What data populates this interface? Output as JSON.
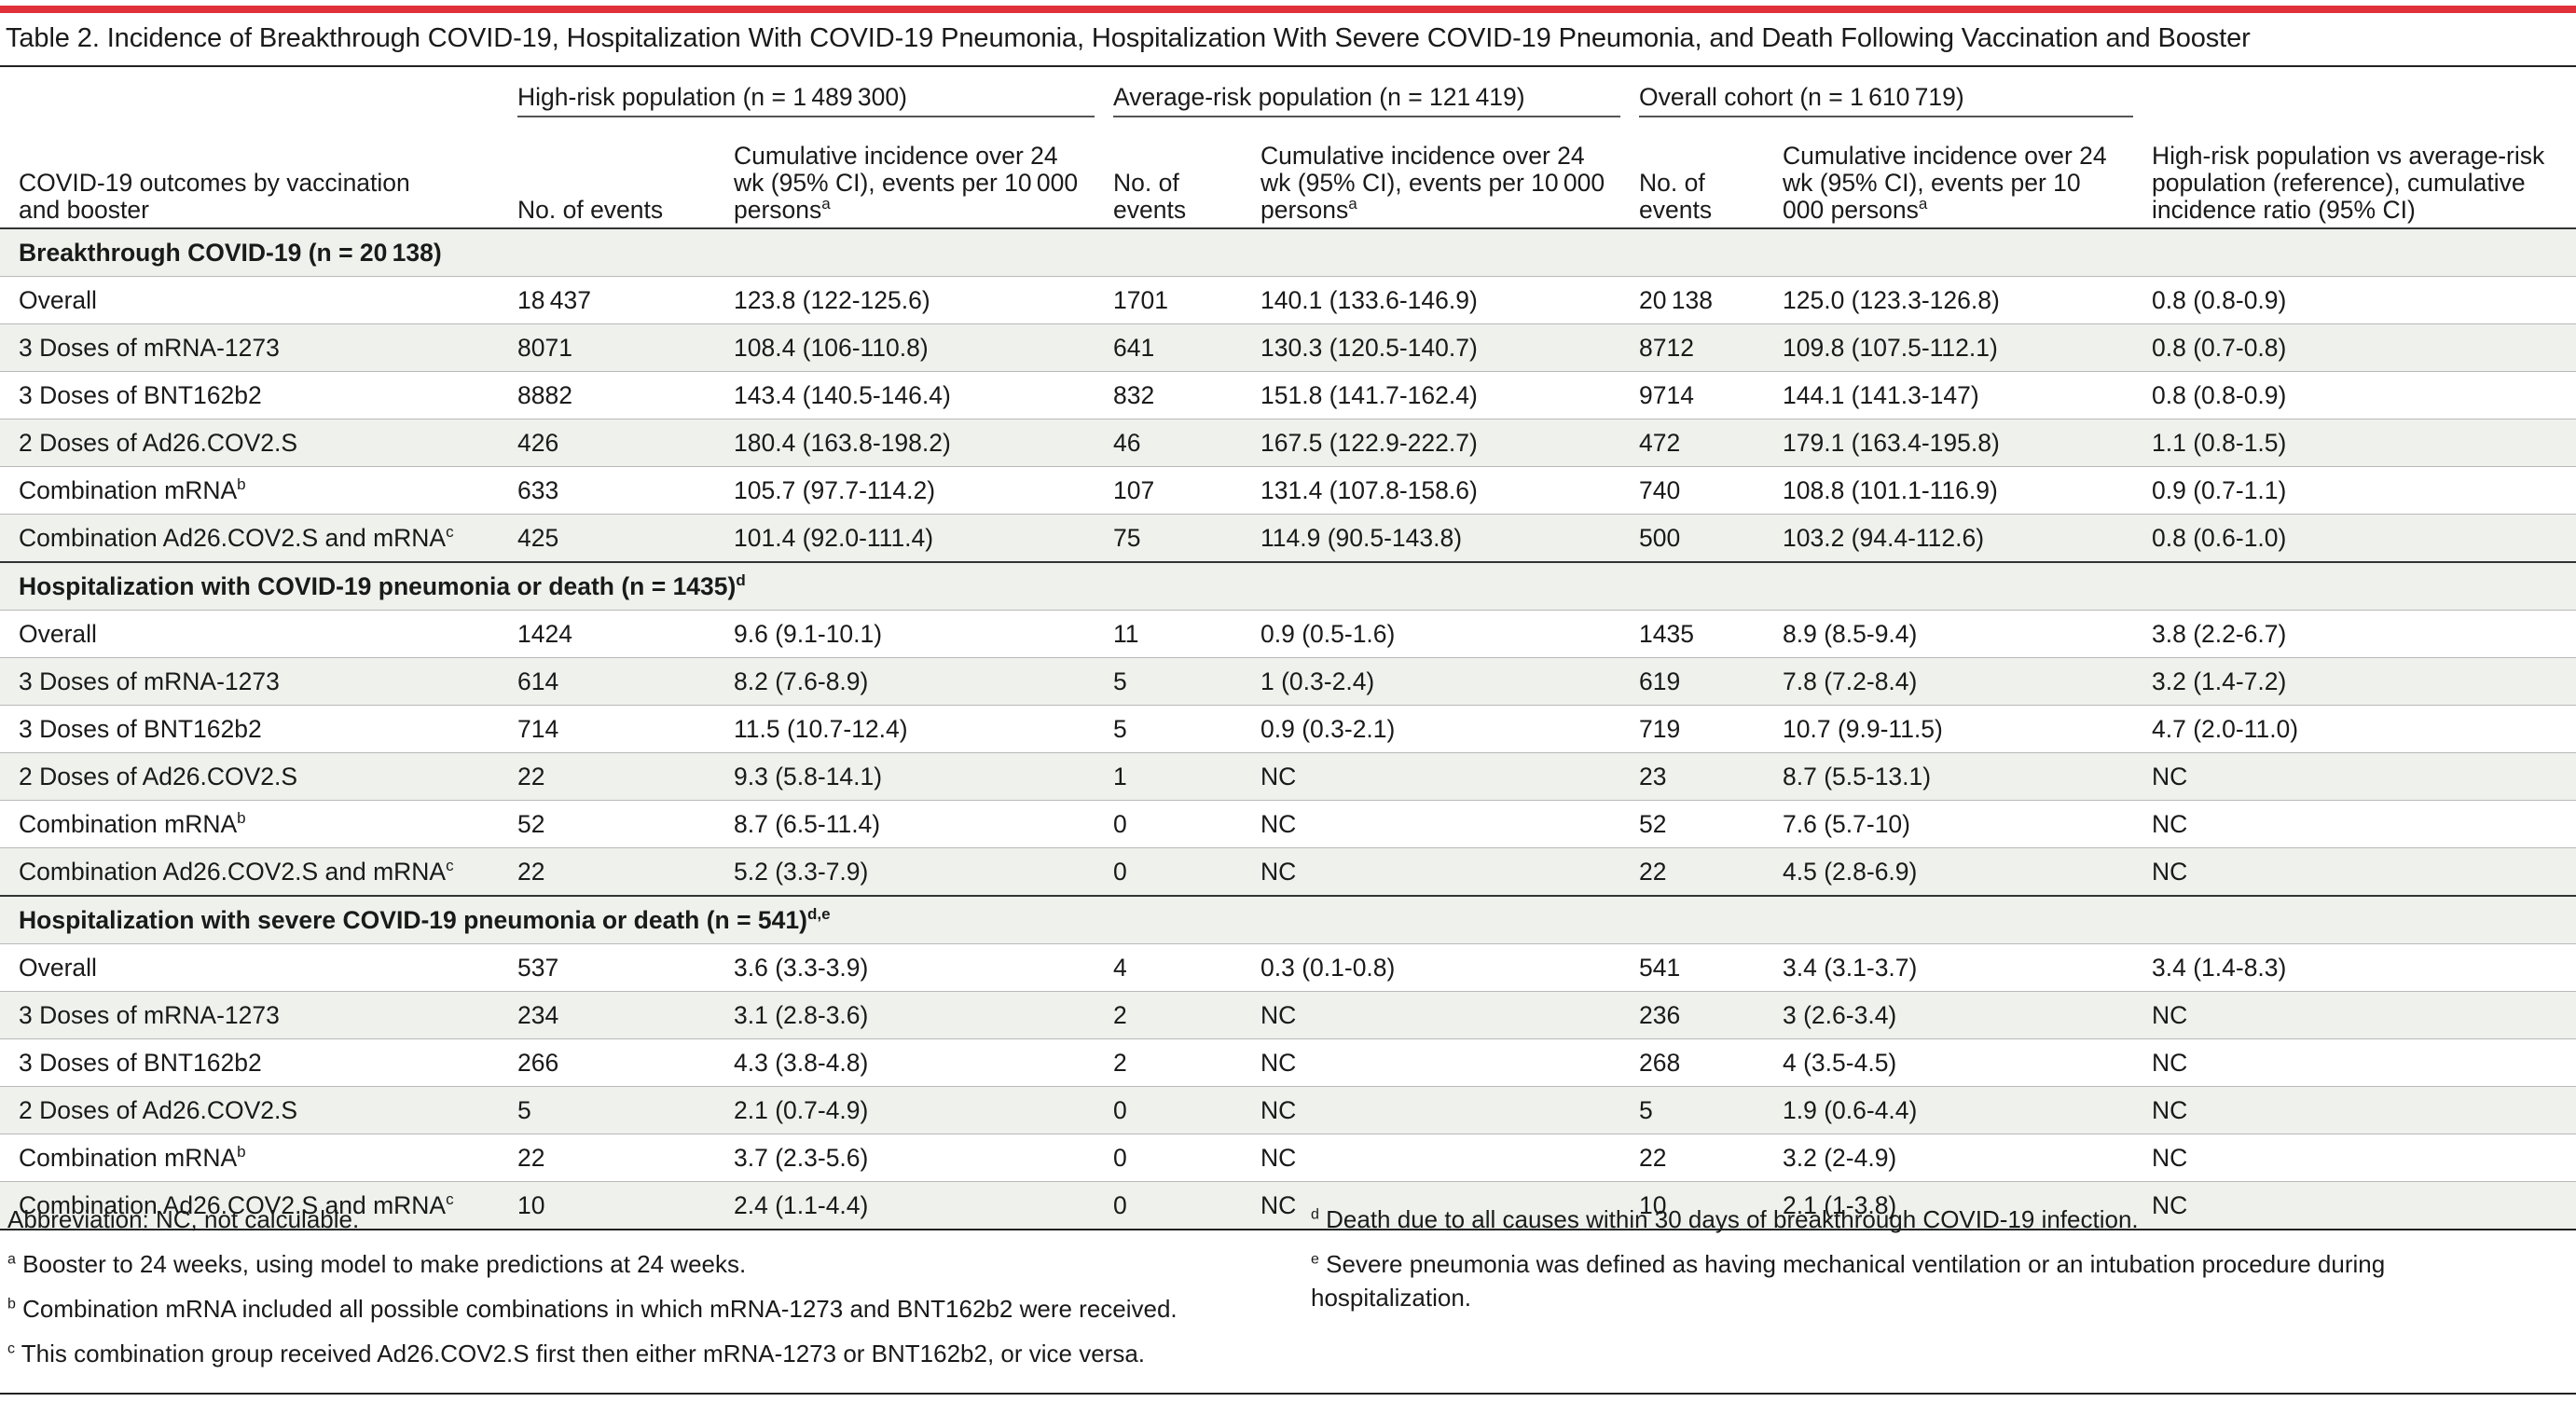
{
  "title": "Table 2. Incidence of Breakthrough COVID-19, Hospitalization With COVID-19 Pneumonia, Hospitalization With Severe COVID-19 Pneumonia, and Death Following Vaccination and Booster",
  "header": {
    "row_label": "COVID-19 outcomes by vaccination and booster",
    "groups": [
      {
        "label": "High-risk population (n = 1 489 300)",
        "events": "No. of events",
        "incidence": "Cumulative incidence over 24 wk (95% CI), events per 10 000 persons",
        "sup": "a"
      },
      {
        "label": "Average-risk population (n = 121 419)",
        "events": "No. of events",
        "incidence": "Cumulative incidence over 24 wk (95% CI), events per 10 000 persons",
        "sup": "a"
      },
      {
        "label": "Overall cohort (n = 1 610 719)",
        "events": "No. of events",
        "incidence": "Cumulative incidence over 24 wk (95% CI), events per 10 000 persons",
        "sup": "a"
      }
    ],
    "ratio": "High-risk population vs average-risk population (reference), cumulative incidence ratio (95% CI)"
  },
  "sections": [
    {
      "title": "Breakthrough COVID-19 (n = 20 138)",
      "title_sup": "",
      "rows": [
        {
          "label": "Overall",
          "sup": "",
          "hr_n": "18 437",
          "hr_ci": "123.8 (122-125.6)",
          "ar_n": "1701",
          "ar_ci": "140.1 (133.6-146.9)",
          "oc_n": "20 138",
          "oc_ci": "125.0 (123.3-126.8)",
          "ratio": "0.8 (0.8-0.9)"
        },
        {
          "label": "3 Doses of mRNA-1273",
          "sup": "",
          "hr_n": "8071",
          "hr_ci": "108.4 (106-110.8)",
          "ar_n": "641",
          "ar_ci": "130.3 (120.5-140.7)",
          "oc_n": "8712",
          "oc_ci": "109.8 (107.5-112.1)",
          "ratio": "0.8 (0.7-0.8)"
        },
        {
          "label": "3 Doses of BNT162b2",
          "sup": "",
          "hr_n": "8882",
          "hr_ci": "143.4 (140.5-146.4)",
          "ar_n": "832",
          "ar_ci": "151.8 (141.7-162.4)",
          "oc_n": "9714",
          "oc_ci": "144.1 (141.3-147)",
          "ratio": "0.8 (0.8-0.9)"
        },
        {
          "label": "2 Doses of Ad26.COV2.S",
          "sup": "",
          "hr_n": "426",
          "hr_ci": "180.4 (163.8-198.2)",
          "ar_n": "46",
          "ar_ci": "167.5 (122.9-222.7)",
          "oc_n": "472",
          "oc_ci": "179.1 (163.4-195.8)",
          "ratio": "1.1 (0.8-1.5)"
        },
        {
          "label": "Combination mRNA",
          "sup": "b",
          "hr_n": "633",
          "hr_ci": "105.7 (97.7-114.2)",
          "ar_n": "107",
          "ar_ci": "131.4 (107.8-158.6)",
          "oc_n": "740",
          "oc_ci": "108.8 (101.1-116.9)",
          "ratio": "0.9 (0.7-1.1)"
        },
        {
          "label": "Combination Ad26.COV2.S and mRNA",
          "sup": "c",
          "hr_n": "425",
          "hr_ci": "101.4 (92.0-111.4)",
          "ar_n": "75",
          "ar_ci": "114.9 (90.5-143.8)",
          "oc_n": "500",
          "oc_ci": "103.2 (94.4-112.6)",
          "ratio": "0.8 (0.6-1.0)"
        }
      ]
    },
    {
      "title": "Hospitalization with COVID-19 pneumonia or death (n = 1435)",
      "title_sup": "d",
      "rows": [
        {
          "label": "Overall",
          "sup": "",
          "hr_n": "1424",
          "hr_ci": "9.6 (9.1-10.1)",
          "ar_n": "11",
          "ar_ci": "0.9 (0.5-1.6)",
          "oc_n": "1435",
          "oc_ci": "8.9 (8.5-9.4)",
          "ratio": "3.8 (2.2-6.7)"
        },
        {
          "label": "3 Doses of mRNA-1273",
          "sup": "",
          "hr_n": "614",
          "hr_ci": "8.2 (7.6-8.9)",
          "ar_n": "5",
          "ar_ci": "1 (0.3-2.4)",
          "oc_n": "619",
          "oc_ci": "7.8 (7.2-8.4)",
          "ratio": "3.2 (1.4-7.2)"
        },
        {
          "label": "3 Doses of BNT162b2",
          "sup": "",
          "hr_n": "714",
          "hr_ci": "11.5 (10.7-12.4)",
          "ar_n": "5",
          "ar_ci": "0.9 (0.3-2.1)",
          "oc_n": "719",
          "oc_ci": "10.7 (9.9-11.5)",
          "ratio": "4.7 (2.0-11.0)"
        },
        {
          "label": "2 Doses of Ad26.COV2.S",
          "sup": "",
          "hr_n": "22",
          "hr_ci": "9.3 (5.8-14.1)",
          "ar_n": "1",
          "ar_ci": "NC",
          "oc_n": "23",
          "oc_ci": "8.7 (5.5-13.1)",
          "ratio": "NC"
        },
        {
          "label": "Combination mRNA",
          "sup": "b",
          "hr_n": "52",
          "hr_ci": "8.7 (6.5-11.4)",
          "ar_n": "0",
          "ar_ci": "NC",
          "oc_n": "52",
          "oc_ci": "7.6 (5.7-10)",
          "ratio": "NC"
        },
        {
          "label": "Combination Ad26.COV2.S and mRNA",
          "sup": "c",
          "hr_n": "22",
          "hr_ci": "5.2 (3.3-7.9)",
          "ar_n": "0",
          "ar_ci": "NC",
          "oc_n": "22",
          "oc_ci": "4.5 (2.8-6.9)",
          "ratio": "NC"
        }
      ]
    },
    {
      "title": "Hospitalization with severe COVID-19 pneumonia or death (n = 541)",
      "title_sup": "d,e",
      "rows": [
        {
          "label": "Overall",
          "sup": "",
          "hr_n": "537",
          "hr_ci": "3.6 (3.3-3.9)",
          "ar_n": "4",
          "ar_ci": "0.3 (0.1-0.8)",
          "oc_n": "541",
          "oc_ci": "3.4 (3.1-3.7)",
          "ratio": "3.4 (1.4-8.3)"
        },
        {
          "label": "3 Doses of mRNA-1273",
          "sup": "",
          "hr_n": "234",
          "hr_ci": "3.1 (2.8-3.6)",
          "ar_n": "2",
          "ar_ci": "NC",
          "oc_n": "236",
          "oc_ci": "3 (2.6-3.4)",
          "ratio": "NC"
        },
        {
          "label": "3 Doses of BNT162b2",
          "sup": "",
          "hr_n": "266",
          "hr_ci": "4.3 (3.8-4.8)",
          "ar_n": "2",
          "ar_ci": "NC",
          "oc_n": "268",
          "oc_ci": "4 (3.5-4.5)",
          "ratio": "NC"
        },
        {
          "label": "2 Doses of Ad26.COV2.S",
          "sup": "",
          "hr_n": "5",
          "hr_ci": "2.1 (0.7-4.9)",
          "ar_n": "0",
          "ar_ci": "NC",
          "oc_n": "5",
          "oc_ci": "1.9 (0.6-4.4)",
          "ratio": "NC"
        },
        {
          "label": "Combination mRNA",
          "sup": "b",
          "hr_n": "22",
          "hr_ci": "3.7 (2.3-5.6)",
          "ar_n": "0",
          "ar_ci": "NC",
          "oc_n": "22",
          "oc_ci": "3.2 (2-4.9)",
          "ratio": "NC"
        },
        {
          "label": "Combination Ad26.COV2.S and mRNA",
          "sup": "c",
          "hr_n": "10",
          "hr_ci": "2.4 (1.1-4.4)",
          "ar_n": "0",
          "ar_ci": "NC",
          "oc_n": "10",
          "oc_ci": "2.1 (1-3.8)",
          "ratio": "NC"
        }
      ]
    }
  ],
  "footnotes": {
    "abbreviation": "Abbreviation: NC, not calculable.",
    "a": {
      "mark": "a",
      "text": "Booster to 24 weeks, using model to make predictions at 24 weeks."
    },
    "b": {
      "mark": "b",
      "text": "Combination mRNA included all possible combinations in which mRNA-1273 and BNT162b2 were received."
    },
    "c": {
      "mark": "c",
      "text": "This combination group received Ad26.COV2.S first then either mRNA-1273 or BNT162b2, or vice versa."
    },
    "d": {
      "mark": "d",
      "text": "Death due to all causes within 30 days of breakthrough COVID-19 infection."
    },
    "e": {
      "mark": "e",
      "text": "Severe pneumonia was defined as having mechanical ventilation or an intubation procedure during hospitalization."
    }
  }
}
